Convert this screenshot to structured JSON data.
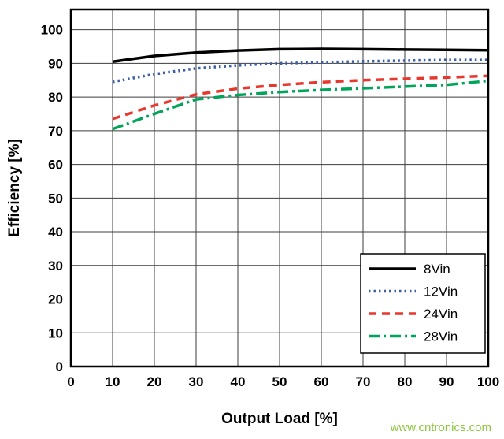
{
  "chart_data": {
    "type": "line",
    "title": "",
    "xlabel": "Output Load [%]",
    "ylabel": "Efficiency [%]",
    "xlim": [
      0,
      100
    ],
    "ylim": [
      0,
      106
    ],
    "xticks": [
      0,
      10,
      20,
      30,
      40,
      50,
      60,
      70,
      80,
      90,
      100
    ],
    "yticks": [
      0,
      10,
      20,
      30,
      40,
      50,
      60,
      70,
      80,
      90,
      100
    ],
    "grid": true,
    "legend_position": "lower right",
    "x": [
      10,
      20,
      30,
      40,
      50,
      60,
      70,
      80,
      90,
      100
    ],
    "series": [
      {
        "name": "8Vin",
        "color": "#000000",
        "style": "solid",
        "values": [
          90.5,
          92.2,
          93.2,
          93.8,
          94.2,
          94.3,
          94.2,
          94.1,
          94.0,
          93.9
        ]
      },
      {
        "name": "12Vin",
        "color": "#3a5fa5",
        "style": "dotted",
        "values": [
          84.5,
          86.8,
          88.5,
          89.4,
          90.0,
          90.3,
          90.6,
          90.8,
          91.0,
          91.0
        ]
      },
      {
        "name": "24Vin",
        "color": "#e8372d",
        "style": "dashed",
        "values": [
          73.5,
          77.5,
          80.8,
          82.5,
          83.6,
          84.4,
          85.0,
          85.4,
          85.8,
          86.3
        ]
      },
      {
        "name": "28Vin",
        "color": "#00a55a",
        "style": "dashdot",
        "values": [
          70.5,
          75.0,
          79.3,
          80.6,
          81.5,
          82.1,
          82.6,
          83.1,
          83.6,
          84.8
        ]
      }
    ]
  },
  "watermark": "www.cntronics.com",
  "colors": {
    "grid": "#3c3c3c",
    "border": "#000000",
    "watermark": "#8cc63e",
    "background": "#ffffff"
  }
}
